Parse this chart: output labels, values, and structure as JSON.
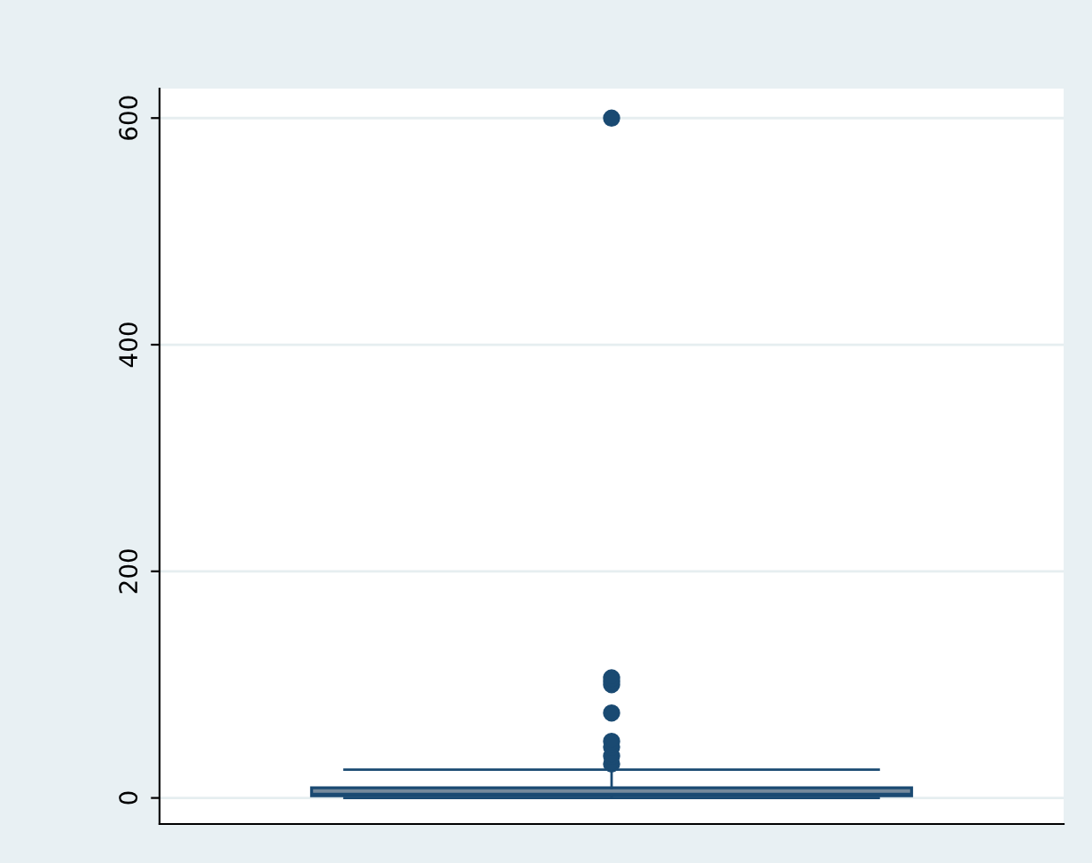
{
  "chart_data": {
    "type": "box",
    "categories": [
      null
    ],
    "color": "#1a4a72",
    "boxes": [
      {
        "low": 0,
        "q1": 2,
        "median": 3,
        "q3": 9,
        "high": 25,
        "outliers": [
          30,
          37,
          45,
          50,
          75,
          100,
          103,
          106,
          600
        ]
      }
    ],
    "ylim": [
      -23,
      626
    ],
    "yticks": [
      0,
      200,
      400,
      600
    ],
    "grid": "y"
  }
}
